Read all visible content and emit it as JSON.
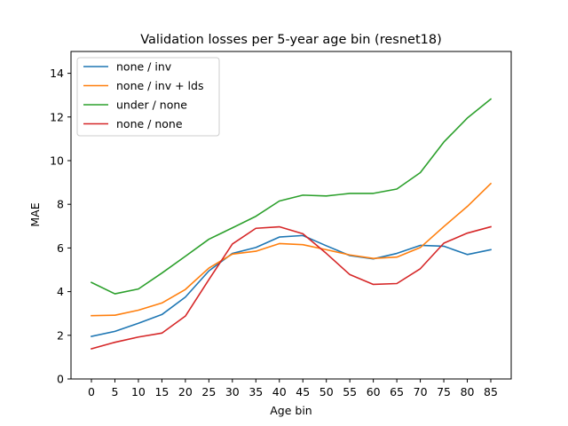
{
  "chart_data": {
    "type": "line",
    "title": "Validation losses per 5-year age bin (resnet18)",
    "xlabel": "Age bin",
    "ylabel": "MAE",
    "categories": [
      "0",
      "5",
      "10",
      "15",
      "20",
      "25",
      "30",
      "35",
      "40",
      "45",
      "50",
      "55",
      "60",
      "65",
      "70",
      "75",
      "80",
      "85"
    ],
    "yticks": [
      "0",
      "2",
      "4",
      "6",
      "8",
      "10",
      "12",
      "14"
    ],
    "ylim": [
      0,
      15
    ],
    "legend_position": "upper-left",
    "grid": false,
    "series": [
      {
        "name": "none / inv",
        "color": "#1f77b4",
        "values": [
          1.95,
          2.18,
          2.55,
          2.95,
          3.75,
          4.95,
          5.75,
          6.02,
          6.5,
          6.57,
          6.1,
          5.65,
          5.5,
          5.75,
          6.12,
          6.08,
          5.7,
          5.92
        ]
      },
      {
        "name": "none / inv + lds",
        "color": "#ff7f0e",
        "values": [
          2.9,
          2.92,
          3.15,
          3.48,
          4.1,
          5.08,
          5.72,
          5.85,
          6.2,
          6.15,
          5.92,
          5.68,
          5.52,
          5.58,
          6.02,
          6.98,
          7.9,
          8.95
        ]
      },
      {
        "name": "under / none",
        "color": "#2ca02c",
        "values": [
          4.42,
          3.9,
          4.12,
          4.85,
          5.62,
          6.4,
          6.92,
          7.45,
          8.15,
          8.42,
          8.38,
          8.5,
          8.5,
          8.7,
          9.45,
          10.85,
          11.95,
          12.82
        ]
      },
      {
        "name": "none / none",
        "color": "#d62728",
        "values": [
          1.38,
          1.68,
          1.92,
          2.1,
          2.88,
          4.55,
          6.18,
          6.9,
          6.97,
          6.65,
          5.75,
          4.78,
          4.33,
          4.37,
          5.05,
          6.22,
          6.68,
          6.97
        ]
      }
    ]
  }
}
